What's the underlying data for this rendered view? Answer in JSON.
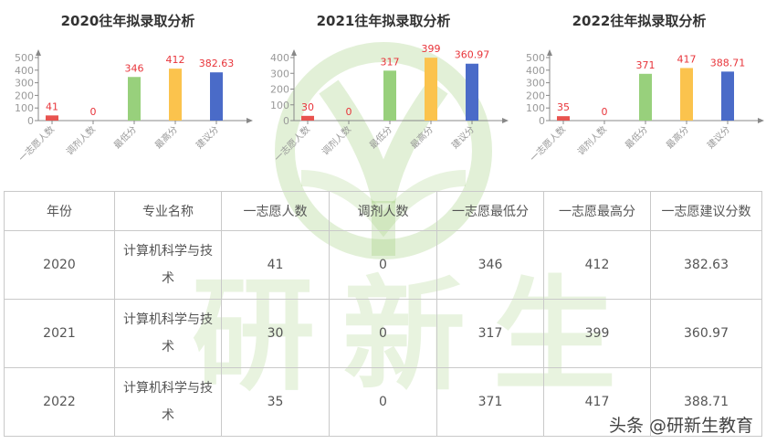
{
  "chart_data": [
    {
      "type": "bar",
      "title": "2020往年拟录取分析",
      "categories": [
        "一志愿人数",
        "调剂人数",
        "最低分",
        "最高分",
        "建议分"
      ],
      "values": [
        41,
        0,
        346,
        412,
        382.63
      ],
      "value_labels": [
        "41",
        "0",
        "346",
        "412",
        "382.63"
      ],
      "colors": [
        "#e8534f",
        "#e8534f",
        "#98d07c",
        "#fbc34d",
        "#4a6bc8"
      ],
      "yticks": [
        0,
        100,
        200,
        300,
        400,
        500
      ],
      "ylim": [
        0,
        500
      ],
      "xlabel": "",
      "ylabel": "",
      "grid": false,
      "legend": "none"
    },
    {
      "type": "bar",
      "title": "2021往年拟录取分析",
      "categories": [
        "一志愿人数",
        "调剂人数",
        "最低分",
        "最高分",
        "建议分"
      ],
      "values": [
        30,
        0,
        317,
        399,
        360.97
      ],
      "value_labels": [
        "30",
        "0",
        "317",
        "399",
        "360.97"
      ],
      "colors": [
        "#e8534f",
        "#e8534f",
        "#98d07c",
        "#fbc34d",
        "#4a6bc8"
      ],
      "yticks": [
        0,
        100,
        200,
        300,
        400
      ],
      "ylim": [
        0,
        400
      ],
      "xlabel": "",
      "ylabel": "",
      "grid": false,
      "legend": "none"
    },
    {
      "type": "bar",
      "title": "2022往年拟录取分析",
      "categories": [
        "一志愿人数",
        "调剂人数",
        "最低分",
        "最高分",
        "建议分"
      ],
      "values": [
        35,
        0,
        371,
        417,
        388.71
      ],
      "value_labels": [
        "35",
        "0",
        "371",
        "417",
        "388.71"
      ],
      "colors": [
        "#e8534f",
        "#e8534f",
        "#98d07c",
        "#fbc34d",
        "#4a6bc8"
      ],
      "yticks": [
        0,
        100,
        200,
        300,
        400,
        500
      ],
      "ylim": [
        0,
        500
      ],
      "xlabel": "",
      "ylabel": "",
      "grid": false,
      "legend": "none"
    }
  ],
  "table": {
    "headers": [
      "年份",
      "专业名称",
      "一志愿人数",
      "调剂人数",
      "一志愿最低分",
      "一志愿最高分",
      "一志愿建议分数"
    ],
    "rows": [
      [
        "2020",
        "计算机科学与技术",
        "41",
        "0",
        "346",
        "412",
        "382.63"
      ],
      [
        "2021",
        "计算机科学与技术",
        "30",
        "0",
        "317",
        "399",
        "360.97"
      ],
      [
        "2022",
        "计算机科学与技术",
        "35",
        "0",
        "371",
        "417",
        "388.71"
      ]
    ]
  },
  "watermark": {
    "text": "研新生"
  },
  "footer": {
    "source": "头条 @研新生教育"
  },
  "colors": {
    "label_red": "#e8343a",
    "axis": "#888888",
    "tick_text": "#999999"
  }
}
